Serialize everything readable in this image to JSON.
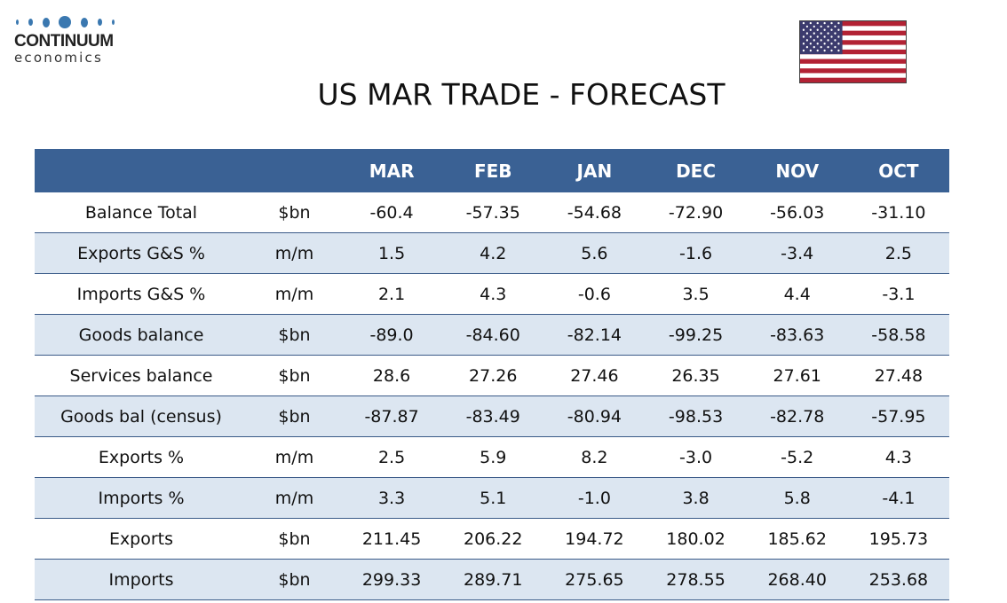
{
  "logo": {
    "brand": "CONTINUUM",
    "sub": "economics"
  },
  "title": "US MAR TRADE - FORECAST",
  "colors": {
    "header": "#3a6194",
    "alt_row": "#dce6f1"
  },
  "columns": [
    "MAR",
    "FEB",
    "JAN",
    "DEC",
    "NOV",
    "OCT"
  ],
  "rows": [
    {
      "label": "Balance Total",
      "unit": "$bn",
      "values": [
        "-60.4",
        "-57.35",
        "-54.68",
        "-72.90",
        "-56.03",
        "-31.10"
      ]
    },
    {
      "label": "Exports G&S %",
      "unit": "m/m",
      "values": [
        "1.5",
        "4.2",
        "5.6",
        "-1.6",
        "-3.4",
        "2.5"
      ]
    },
    {
      "label": "Imports G&S %",
      "unit": "m/m",
      "values": [
        "2.1",
        "4.3",
        "-0.6",
        "3.5",
        "4.4",
        "-3.1"
      ]
    },
    {
      "label": "Goods balance",
      "unit": "$bn",
      "values": [
        "-89.0",
        "-84.60",
        "-82.14",
        "-99.25",
        "-83.63",
        "-58.58"
      ]
    },
    {
      "label": "Services balance",
      "unit": "$bn",
      "values": [
        "28.6",
        "27.26",
        "27.46",
        "26.35",
        "27.61",
        "27.48"
      ]
    },
    {
      "label": "Goods bal (census)",
      "unit": "$bn",
      "values": [
        "-87.87",
        "-83.49",
        "-80.94",
        "-98.53",
        "-82.78",
        "-57.95"
      ]
    },
    {
      "label": "Exports %",
      "unit": "m/m",
      "values": [
        "2.5",
        "5.9",
        "8.2",
        "-3.0",
        "-5.2",
        "4.3"
      ]
    },
    {
      "label": "Imports %",
      "unit": "m/m",
      "values": [
        "3.3",
        "5.1",
        "-1.0",
        "3.8",
        "5.8",
        "-4.1"
      ]
    },
    {
      "label": "Exports",
      "unit": "$bn",
      "values": [
        "211.45",
        "206.22",
        "194.72",
        "180.02",
        "185.62",
        "195.73"
      ]
    },
    {
      "label": "Imports",
      "unit": "$bn",
      "values": [
        "299.33",
        "289.71",
        "275.65",
        "278.55",
        "268.40",
        "253.68"
      ]
    }
  ]
}
